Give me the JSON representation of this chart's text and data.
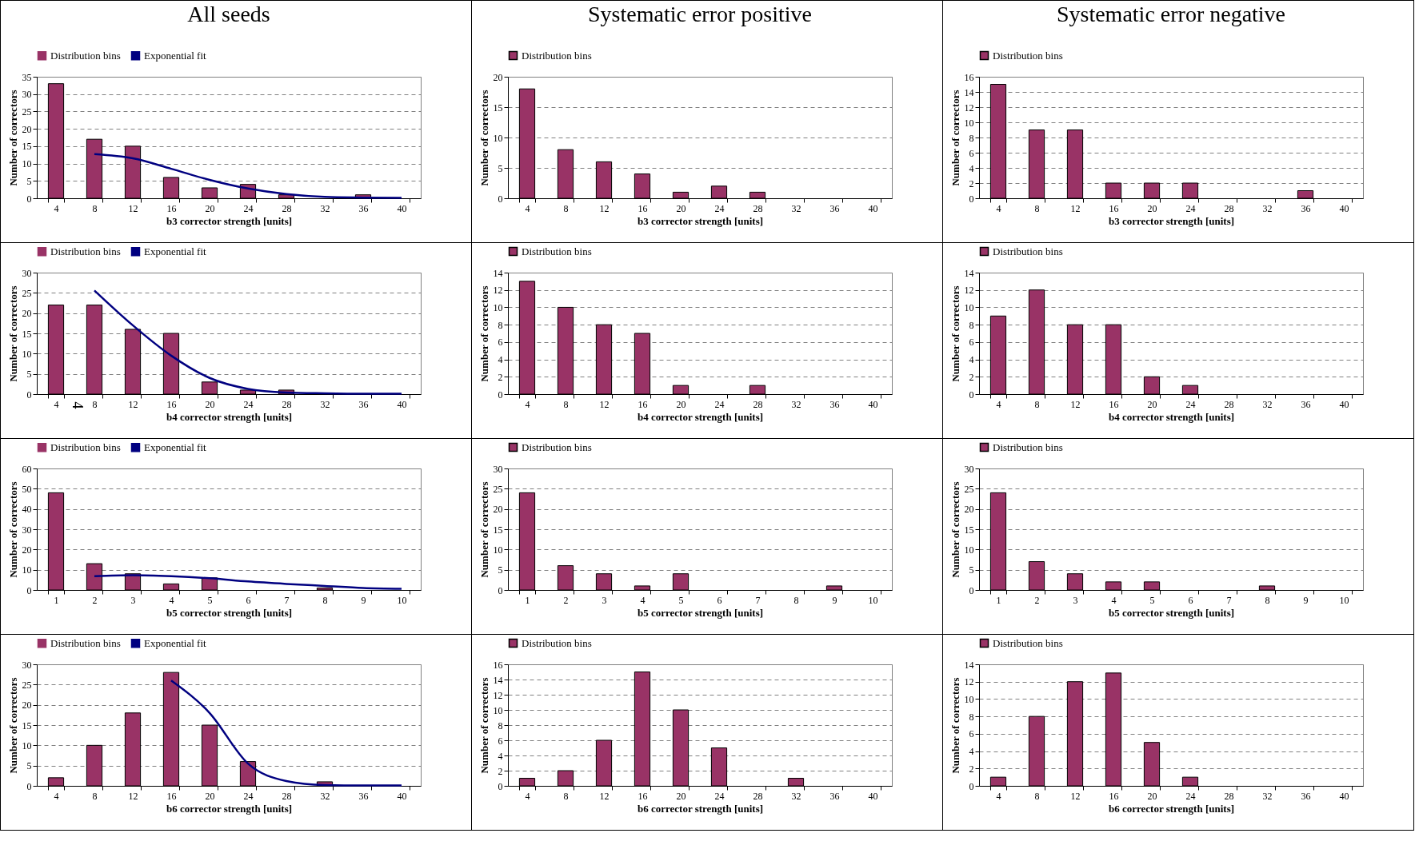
{
  "chart_data": [
    {
      "type": "bar",
      "title": "All seeds",
      "xlabel": "b3 corrector strength [units]",
      "ylabel": "Number of correctors",
      "categories": [
        "4",
        "8",
        "12",
        "16",
        "20",
        "24",
        "28",
        "32",
        "36",
        "40"
      ],
      "series": [
        {
          "name": "Distribution bins",
          "color": "#993366",
          "values": [
            33,
            17,
            15,
            6,
            3,
            4,
            1,
            0,
            1,
            0
          ]
        },
        {
          "name": "Exponential fit",
          "type": "line",
          "color": "#000080",
          "values": [
            null,
            12.7,
            11.5,
            8.5,
            5.3,
            2.8,
            1.2,
            0.4,
            0.2,
            0.1
          ]
        }
      ],
      "ylim": [
        0,
        35
      ],
      "yticks": [
        0,
        5,
        10,
        15,
        20,
        25,
        30,
        35
      ],
      "grid": "y",
      "legend": "top"
    },
    {
      "type": "bar",
      "title": "Systematic error positive",
      "xlabel": "b3 corrector strength [units]",
      "ylabel": "Number of correctors",
      "categories": [
        "4",
        "8",
        "12",
        "16",
        "20",
        "24",
        "28",
        "32",
        "36",
        "40"
      ],
      "series": [
        {
          "name": "Distribution bins",
          "color": "#993366",
          "values": [
            18,
            8,
            6,
            4,
            1,
            2,
            1,
            0,
            0,
            0
          ]
        }
      ],
      "ylim": [
        0,
        20
      ],
      "yticks": [
        0,
        5,
        10,
        15,
        20
      ],
      "grid": "y",
      "legend": "top"
    },
    {
      "type": "bar",
      "title": "Systematic error negative",
      "xlabel": "b3 corrector strength [units]",
      "ylabel": "Number of correctors",
      "categories": [
        "4",
        "8",
        "12",
        "16",
        "20",
        "24",
        "28",
        "32",
        "36",
        "40"
      ],
      "series": [
        {
          "name": "Distribution bins",
          "color": "#993366",
          "values": [
            15,
            9,
            9,
            2,
            2,
            2,
            0,
            0,
            1,
            0
          ]
        }
      ],
      "ylim": [
        0,
        16
      ],
      "yticks": [
        0,
        2,
        4,
        6,
        8,
        10,
        12,
        14,
        16
      ],
      "grid": "y",
      "legend": "top"
    },
    {
      "type": "bar",
      "xlabel": "b4 corrector strength [units]",
      "ylabel": "Number of correctors",
      "categories": [
        "4",
        "8",
        "12",
        "16",
        "20",
        "24",
        "28",
        "32",
        "36",
        "40"
      ],
      "series": [
        {
          "name": "Distribution bins",
          "color": "#993366",
          "values": [
            22,
            22,
            16,
            15,
            3,
            1,
            1,
            0,
            0,
            0
          ]
        },
        {
          "name": "Exponential fit",
          "type": "line",
          "color": "#000080",
          "values": [
            null,
            25.6,
            17,
            9.5,
            4,
            1.3,
            0.4,
            0.2,
            0.1,
            0.1
          ]
        }
      ],
      "ylim": [
        0,
        30
      ],
      "yticks": [
        0,
        5,
        10,
        15,
        20,
        25,
        30
      ],
      "grid": "y",
      "legend": "top",
      "annotations": [
        "4"
      ]
    },
    {
      "type": "bar",
      "xlabel": "b4 corrector strength [units]",
      "ylabel": "Number of correctors",
      "categories": [
        "4",
        "8",
        "12",
        "16",
        "20",
        "24",
        "28",
        "32",
        "36",
        "40"
      ],
      "series": [
        {
          "name": "Distribution bins",
          "color": "#993366",
          "values": [
            13,
            10,
            8,
            7,
            1,
            0,
            1,
            0,
            0,
            0
          ]
        }
      ],
      "ylim": [
        0,
        14
      ],
      "yticks": [
        0,
        2,
        4,
        6,
        8,
        10,
        12,
        14
      ],
      "grid": "y",
      "legend": "top"
    },
    {
      "type": "bar",
      "xlabel": "b4 corrector strength [units]",
      "ylabel": "Number of correctors",
      "categories": [
        "4",
        "8",
        "12",
        "16",
        "20",
        "24",
        "28",
        "32",
        "36",
        "40"
      ],
      "series": [
        {
          "name": "Distribution bins",
          "color": "#993366",
          "values": [
            9,
            12,
            8,
            8,
            2,
            1,
            0,
            0,
            0,
            0
          ]
        }
      ],
      "ylim": [
        0,
        14
      ],
      "yticks": [
        0,
        2,
        4,
        6,
        8,
        10,
        12,
        14
      ],
      "grid": "y",
      "legend": "top"
    },
    {
      "type": "bar",
      "xlabel": "b5 corrector strength [units]",
      "ylabel": "Number of correctors",
      "categories": [
        "1",
        "2",
        "3",
        "4",
        "5",
        "6",
        "7",
        "8",
        "9",
        "10"
      ],
      "series": [
        {
          "name": "Distribution bins",
          "color": "#993366",
          "values": [
            48,
            13,
            8,
            3,
            6,
            0,
            0,
            1,
            0,
            0
          ]
        },
        {
          "name": "Exponential fit",
          "type": "line",
          "color": "#000080",
          "values": [
            null,
            6.8,
            7.3,
            6.8,
            5.8,
            4.2,
            3,
            2,
            1,
            0.6
          ]
        }
      ],
      "ylim": [
        0,
        60
      ],
      "yticks": [
        0,
        10,
        20,
        30,
        40,
        50,
        60
      ],
      "grid": "y",
      "legend": "top"
    },
    {
      "type": "bar",
      "xlabel": "b5 corrector strength [units]",
      "ylabel": "Number of correctors",
      "categories": [
        "1",
        "2",
        "3",
        "4",
        "5",
        "6",
        "7",
        "8",
        "9",
        "10"
      ],
      "series": [
        {
          "name": "Distribution bins",
          "color": "#993366",
          "values": [
            24,
            6,
            4,
            1,
            4,
            0,
            0,
            0,
            1,
            0
          ]
        }
      ],
      "ylim": [
        0,
        30
      ],
      "yticks": [
        0,
        5,
        10,
        15,
        20,
        25,
        30
      ],
      "grid": "y",
      "legend": "top"
    },
    {
      "type": "bar",
      "xlabel": "b5 corrector strength [units]",
      "ylabel": "Number of correctors",
      "categories": [
        "1",
        "2",
        "3",
        "4",
        "5",
        "6",
        "7",
        "8",
        "9",
        "10"
      ],
      "series": [
        {
          "name": "Distribution bins",
          "color": "#993366",
          "values": [
            24,
            7,
            4,
            2,
            2,
            0,
            0,
            1,
            0,
            0
          ]
        }
      ],
      "ylim": [
        0,
        30
      ],
      "yticks": [
        0,
        5,
        10,
        15,
        20,
        25,
        30
      ],
      "grid": "y",
      "legend": "top"
    },
    {
      "type": "bar",
      "xlabel": "b6 corrector strength [units]",
      "ylabel": "Number of correctors",
      "categories": [
        "4",
        "8",
        "12",
        "16",
        "20",
        "24",
        "28",
        "32",
        "36",
        "40"
      ],
      "series": [
        {
          "name": "Distribution bins",
          "color": "#993366",
          "values": [
            2,
            10,
            18,
            28,
            15,
            6,
            0,
            1,
            0,
            0
          ]
        },
        {
          "name": "Exponential fit",
          "type": "line",
          "color": "#000080",
          "values": [
            null,
            null,
            null,
            26,
            18,
            5.5,
            1.2,
            0.2,
            0.1,
            0.1
          ]
        }
      ],
      "ylim": [
        0,
        30
      ],
      "yticks": [
        0,
        5,
        10,
        15,
        20,
        25,
        30
      ],
      "grid": "y",
      "legend": "top"
    },
    {
      "type": "bar",
      "xlabel": "b6 corrector strength [units]",
      "ylabel": "Number of correctors",
      "categories": [
        "4",
        "8",
        "12",
        "16",
        "20",
        "24",
        "28",
        "32",
        "36",
        "40"
      ],
      "series": [
        {
          "name": "Distribution bins",
          "color": "#993366",
          "values": [
            1,
            2,
            6,
            15,
            10,
            5,
            0,
            1,
            0,
            0
          ]
        }
      ],
      "ylim": [
        0,
        16
      ],
      "yticks": [
        0,
        2,
        4,
        6,
        8,
        10,
        12,
        14,
        16
      ],
      "grid": "y",
      "legend": "top"
    },
    {
      "type": "bar",
      "xlabel": "b6 corrector strength [units]",
      "ylabel": "Number of correctors",
      "categories": [
        "4",
        "8",
        "12",
        "16",
        "20",
        "24",
        "28",
        "32",
        "36",
        "40"
      ],
      "series": [
        {
          "name": "Distribution bins",
          "color": "#993366",
          "values": [
            1,
            8,
            12,
            13,
            5,
            1,
            0,
            0,
            0,
            0
          ]
        }
      ],
      "ylim": [
        0,
        14
      ],
      "yticks": [
        0,
        2,
        4,
        6,
        8,
        10,
        12,
        14
      ],
      "grid": "y",
      "legend": "top"
    }
  ]
}
